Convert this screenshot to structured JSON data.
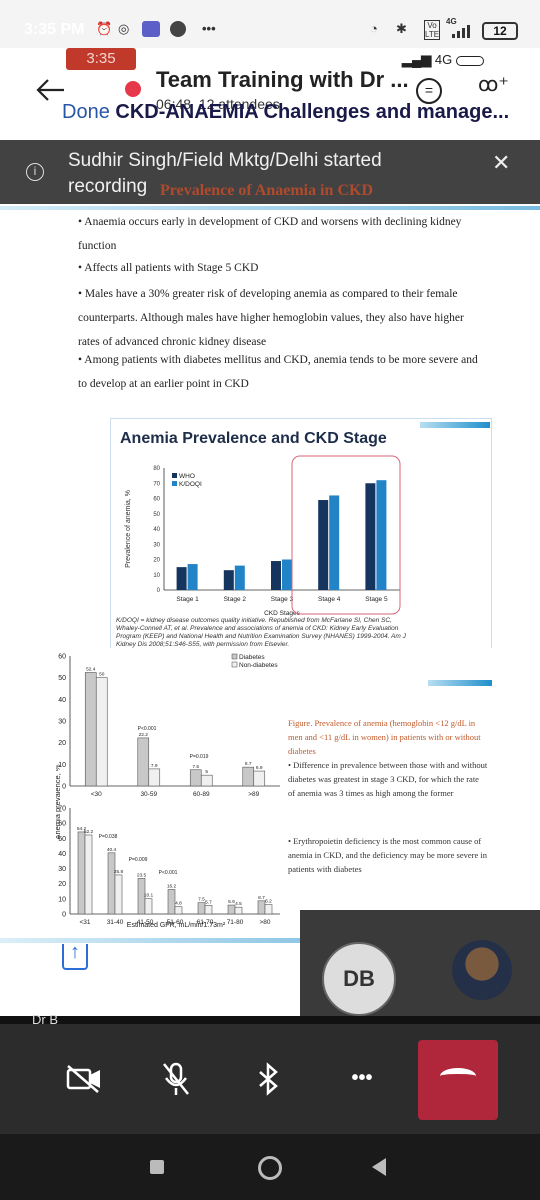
{
  "status_bar": {
    "time": "3:35 PM",
    "icons": [
      "alarm-icon",
      "whatsapp-icon",
      "teams-icon",
      "shield-icon",
      "more-icon"
    ],
    "overflow": "•••",
    "net_label": "4G",
    "volte": "Vo LTE",
    "battery": "12"
  },
  "meeting": {
    "elapsed_chip": "3:35",
    "signal_label": "4G",
    "title": "Team Training with Dr ...",
    "duration": "06:48",
    "attendees": "12 attendees"
  },
  "document": {
    "done_label": "Done",
    "title": "CKD-ANAEMIA Challenges and manage..."
  },
  "banner": {
    "text": "Sudhir Singh/Field Mktg/Delhi started recording"
  },
  "slide1": {
    "title": "Prevalence of Anaemia in CKD",
    "bullets": [
      "• Anaemia occurs early in development of CKD and worsens with declining kidney function",
      "• Affects all patients with Stage 5 CKD",
      "• Males have a 30% greater risk of developing anemia as compared to their female counterparts. Although males have higher hemoglobin values, they also have higher rates of advanced chronic kidney disease",
      "• Among patients with diabetes mellitus and CKD, anemia tends to be more severe and to develop at an earlier point in CKD"
    ]
  },
  "slide2": {
    "title": "Anemia Prevalence and CKD Stage",
    "footnote": "K/DOQI = kidney disease outcomes quality initiative. Republished from McFarlane SI, Chen SC, Whaley-Connell AT, et al. Prevalence and associations of anemia of CKD: Kidney Early Evaluation Program (KEEP) and National Health and Nutrition Examination Survey (NHANES) 1999-2004. Am J Kidney Dis 2008;51:S46-S55, with permission from Elsevier."
  },
  "chart_data": [
    {
      "type": "bar",
      "title": "Anemia Prevalence and CKD Stage",
      "categories": [
        "Stage 1",
        "Stage 2",
        "Stage 3",
        "Stage 4",
        "Stage 5"
      ],
      "series": [
        {
          "name": "WHO",
          "values": [
            15,
            13,
            19,
            59,
            70
          ]
        },
        {
          "name": "K/DOQI",
          "values": [
            17,
            16,
            20,
            62,
            72
          ]
        }
      ],
      "xlabel": "CKD Stages",
      "ylabel": "Prevalence of anemia, %",
      "ylim": [
        0,
        80
      ],
      "yticks": [
        0,
        10,
        20,
        30,
        40,
        50,
        60,
        70,
        80
      ],
      "colors": {
        "WHO": "#16355e",
        "K/DOQI": "#2383c7"
      },
      "legend": "top-left"
    },
    {
      "type": "bar",
      "categories": [
        "<30",
        "30-59",
        "60-89",
        ">89"
      ],
      "series": [
        {
          "name": "Diabetes",
          "values": [
            52.4,
            22.2,
            7.5,
            8.7
          ]
        },
        {
          "name": "Non-diabetes",
          "values": [
            50,
            7.9,
            5,
            6.9
          ]
        }
      ],
      "annotations": [
        "P<0.001",
        "P=0.019"
      ],
      "ylim": [
        0,
        60
      ],
      "yticks": [
        0,
        10,
        20,
        30,
        40,
        50,
        60
      ],
      "legend": "top-right"
    },
    {
      "type": "bar",
      "categories": [
        "<31",
        "31-40",
        "41-50",
        "51-60",
        "61-70",
        "71-80",
        ">80"
      ],
      "series": [
        {
          "name": "Diabetes",
          "values": [
            54.2,
            40.4,
            23.5,
            16.2,
            7.5,
            5.9,
            8.7
          ]
        },
        {
          "name": "Non-diabetes",
          "values": [
            52.2,
            25.8,
            10.1,
            4.8,
            5.7,
            4.5,
            6.2
          ]
        }
      ],
      "annotations": [
        "P=0.038",
        "P=0.009",
        "P<0.001"
      ],
      "xlabel": "Estimated GFR, mL/min/1.73m²",
      "ylabel": "Anemia prevalence, %",
      "ylim": [
        0,
        70
      ],
      "yticks": [
        0,
        10,
        20,
        30,
        40,
        50,
        60,
        70
      ]
    }
  ],
  "slide3": {
    "figure_caption": "Figure. Prevalence of anemia (hemoglobin <12 g/dL in men and <11 g/dL in women) in patients with or without diabetes",
    "bullets": [
      "• Difference in prevalence between those with and without diabetes was greatest in stage 3 CKD, for which the rate of anemia was 3 times as high among the former",
      "• Erythropoietin deficiency is the most common cause of anemia in CKD, and the deficiency may be more severe in patients with diabetes"
    ]
  },
  "participants": {
    "db_initials": "DB",
    "you_label": "Dr B"
  },
  "controls": {
    "more": "•••"
  }
}
